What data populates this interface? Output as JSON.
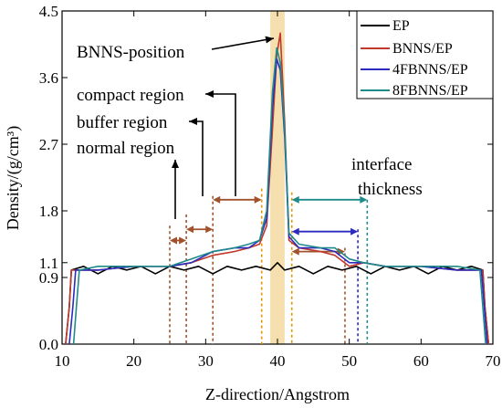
{
  "chart_data": {
    "type": "line",
    "xlabel": "Z-direction/Angstrom",
    "ylabel": "Density/(g/cm³)",
    "xlim": [
      10,
      70
    ],
    "ylim": [
      0,
      4.5
    ],
    "xticks": [
      10,
      20,
      30,
      40,
      50,
      60,
      70
    ],
    "yticks": [
      {
        "value": 0.0,
        "label": "0.0"
      },
      {
        "value": 0.9,
        "label": "0.9"
      },
      {
        "value": 1.1,
        "label": "1.1"
      },
      {
        "value": 1.8,
        "label": "1.8"
      },
      {
        "value": 2.7,
        "label": "2.7"
      },
      {
        "value": 3.6,
        "label": "3.6"
      },
      {
        "value": 4.5,
        "label": "4.5"
      }
    ],
    "legend_position": "top-right",
    "grid": false,
    "highlight_band": {
      "x": [
        39,
        41
      ],
      "color": "#f6dfae"
    },
    "series": [
      {
        "name": "EP",
        "color": "#000000",
        "points": [
          [
            10.5,
            0.0
          ],
          [
            11.0,
            0.5
          ],
          [
            11.3,
            1.0
          ],
          [
            13,
            1.05
          ],
          [
            15,
            0.95
          ],
          [
            17,
            1.05
          ],
          [
            19,
            1.0
          ],
          [
            21,
            1.05
          ],
          [
            23,
            0.95
          ],
          [
            25,
            1.05
          ],
          [
            27,
            1.0
          ],
          [
            29,
            1.05
          ],
          [
            31,
            0.95
          ],
          [
            33,
            1.05
          ],
          [
            35,
            1.0
          ],
          [
            37,
            1.05
          ],
          [
            39,
            1.0
          ],
          [
            40,
            1.1
          ],
          [
            41,
            1.0
          ],
          [
            43,
            1.05
          ],
          [
            45,
            0.95
          ],
          [
            47,
            1.05
          ],
          [
            49,
            1.0
          ],
          [
            51,
            1.05
          ],
          [
            53,
            0.95
          ],
          [
            55,
            1.05
          ],
          [
            57,
            1.0
          ],
          [
            59,
            1.05
          ],
          [
            61,
            0.95
          ],
          [
            63,
            1.05
          ],
          [
            65,
            1.0
          ],
          [
            67,
            1.05
          ],
          [
            68.6,
            1.0
          ],
          [
            68.9,
            0.5
          ],
          [
            69.4,
            0.0
          ]
        ]
      },
      {
        "name": "BNNS/EP",
        "color": "#c0392b",
        "points": [
          [
            10.5,
            0.0
          ],
          [
            11.0,
            0.5
          ],
          [
            11.3,
            1.0
          ],
          [
            15,
            1.0
          ],
          [
            20,
            1.05
          ],
          [
            25,
            1.05
          ],
          [
            28,
            1.1
          ],
          [
            31,
            1.2
          ],
          [
            34,
            1.25
          ],
          [
            36,
            1.3
          ],
          [
            37.5,
            1.35
          ],
          [
            38.5,
            1.6
          ],
          [
            39.3,
            2.9
          ],
          [
            39.9,
            3.9
          ],
          [
            40.4,
            4.2
          ],
          [
            41.0,
            3.0
          ],
          [
            41.6,
            1.4
          ],
          [
            43,
            1.3
          ],
          [
            46,
            1.25
          ],
          [
            48,
            1.2
          ],
          [
            50,
            1.05
          ],
          [
            52,
            1.1
          ],
          [
            55,
            1.05
          ],
          [
            60,
            1.05
          ],
          [
            65,
            1.0
          ],
          [
            68.6,
            1.0
          ],
          [
            68.9,
            0.5
          ],
          [
            69.4,
            0.0
          ]
        ]
      },
      {
        "name": "4FBNNS/EP",
        "color": "#2b2bbf",
        "points": [
          [
            11.0,
            0.0
          ],
          [
            11.5,
            0.5
          ],
          [
            11.9,
            1.0
          ],
          [
            15,
            1.0
          ],
          [
            20,
            1.05
          ],
          [
            25,
            1.05
          ],
          [
            28,
            1.1
          ],
          [
            31,
            1.25
          ],
          [
            34,
            1.3
          ],
          [
            36,
            1.3
          ],
          [
            37.5,
            1.4
          ],
          [
            38.5,
            1.7
          ],
          [
            39.3,
            3.2
          ],
          [
            39.9,
            3.85
          ],
          [
            40.4,
            3.7
          ],
          [
            41.0,
            2.8
          ],
          [
            41.6,
            1.45
          ],
          [
            43,
            1.3
          ],
          [
            46,
            1.3
          ],
          [
            48,
            1.25
          ],
          [
            50,
            1.1
          ],
          [
            52,
            1.1
          ],
          [
            55,
            1.05
          ],
          [
            60,
            1.05
          ],
          [
            65,
            1.0
          ],
          [
            68.4,
            1.0
          ],
          [
            68.8,
            0.5
          ],
          [
            69.2,
            0.0
          ]
        ]
      },
      {
        "name": "8FBNNS/EP",
        "color": "#1f8a8a",
        "points": [
          [
            11.6,
            0.0
          ],
          [
            12.0,
            0.5
          ],
          [
            12.4,
            1.0
          ],
          [
            15,
            1.05
          ],
          [
            20,
            1.05
          ],
          [
            25,
            1.05
          ],
          [
            28,
            1.15
          ],
          [
            31,
            1.25
          ],
          [
            34,
            1.3
          ],
          [
            36,
            1.35
          ],
          [
            37.5,
            1.4
          ],
          [
            38.5,
            1.8
          ],
          [
            39.3,
            3.4
          ],
          [
            39.9,
            4.0
          ],
          [
            40.4,
            3.8
          ],
          [
            41.0,
            2.9
          ],
          [
            41.6,
            1.5
          ],
          [
            43,
            1.35
          ],
          [
            46,
            1.3
          ],
          [
            48,
            1.3
          ],
          [
            50,
            1.15
          ],
          [
            52,
            1.1
          ],
          [
            55,
            1.05
          ],
          [
            60,
            1.05
          ],
          [
            65,
            1.05
          ],
          [
            68.2,
            1.0
          ],
          [
            68.6,
            0.5
          ],
          [
            69.0,
            0.0
          ]
        ]
      }
    ],
    "vertical_lines": [
      {
        "x": 25.0,
        "ytop": 1.6,
        "color": "#a0522d"
      },
      {
        "x": 27.3,
        "ytop": 1.75,
        "color": "#a0522d"
      },
      {
        "x": 31.0,
        "ytop": 2.0,
        "color": "#a0522d"
      },
      {
        "x": 37.8,
        "ytop": 2.1,
        "color": "#e69500"
      },
      {
        "x": 42.0,
        "ytop": 2.05,
        "color": "#e69500"
      },
      {
        "x": 49.4,
        "ytop": 1.3,
        "color": "#a0522d"
      },
      {
        "x": 51.2,
        "ytop": 1.55,
        "color": "#2b2bbf"
      },
      {
        "x": 52.5,
        "ytop": 1.95,
        "color": "#1f8a8a"
      }
    ],
    "double_arrows": [
      {
        "x1": 25.0,
        "x2": 27.3,
        "y": 1.4,
        "color": "#a0522d"
      },
      {
        "x1": 27.3,
        "x2": 31.0,
        "y": 1.55,
        "color": "#a0522d"
      },
      {
        "x1": 31.0,
        "x2": 37.8,
        "y": 1.95,
        "color": "#a0522d"
      },
      {
        "x1": 42.0,
        "x2": 49.4,
        "y": 1.25,
        "color": "#a0522d"
      },
      {
        "x1": 42.0,
        "x2": 51.2,
        "y": 1.52,
        "color": "#2b2bbf"
      },
      {
        "x1": 42.0,
        "x2": 52.5,
        "y": 1.95,
        "color": "#1f8a8a"
      }
    ],
    "annotations": {
      "bnns_position": "BNNS-position",
      "compact_region": "compact region",
      "buffer_region": "buffer region",
      "normal_region": "normal region",
      "interface_line1": "interface",
      "interface_line2": "thickness"
    }
  }
}
